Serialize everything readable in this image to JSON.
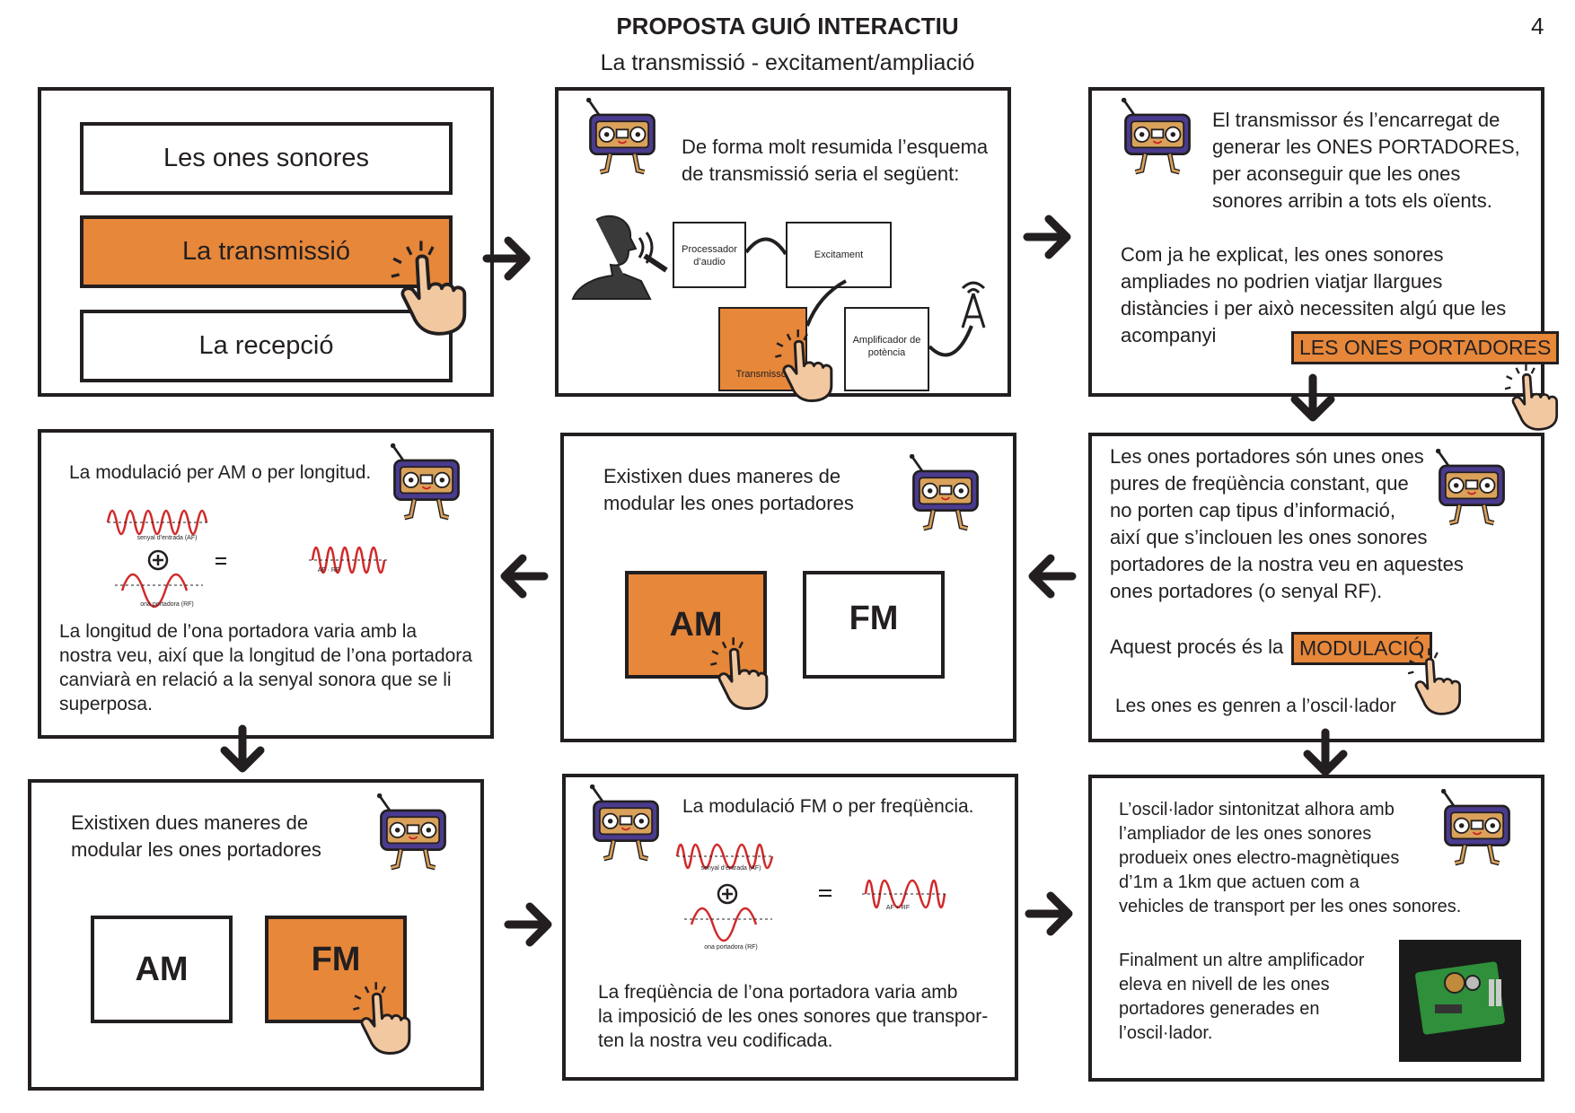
{
  "header": {
    "title": "PROPOSTA GUIÓ INTERACTIU",
    "subtitle": "La transmissió - excitament/ampliació",
    "page_number": "4"
  },
  "panel1": {
    "buttons": [
      "Les ones sonores",
      "La transmissió",
      "La recepció"
    ],
    "selected": 1
  },
  "panel2": {
    "text": "De forma molt resumida l’esquema\nde transmissió seria el següent:",
    "boxes": {
      "processor": "Processador\nd’audio",
      "exciter": "Excitament",
      "transmitter": "Transmissor",
      "amplifier": "Amplificador\nde potència"
    }
  },
  "panel3": {
    "text1": "El transmissor és l’encarregat de\ngenerar les ONES PORTADORES,\nper aconseguir que les ones\nsonores arribin a tots els oïents.",
    "text2": "Com ja he explicat, les ones sonores\nampliades no podrien viatjar llargues\ndistàncies i per això necessiten algú que les\nacompanyi",
    "button": "LES ONES PORTADORES"
  },
  "panel4": {
    "text": "Les ones portadores són unes ones\npures de freqüència constant, que\nno porten cap tipus d’informació,\naixí que s’inclouen les ones sonores\nportadores de la nostra veu en aquestes\nones portadores (o senyal RF).",
    "process_text": "Aquest procés és la",
    "button": "MODULACIÓ",
    "footer": "Les ones es genren a l’oscil·lador"
  },
  "panel5": {
    "text": "Existixen dues maneres de\nmodular les ones portadores",
    "am_label": "AM",
    "fm_label": "FM"
  },
  "panel6": {
    "title": "La modulació per AM o per longitud.",
    "captions": {
      "input": "senyal d’entrada (AF)",
      "carrier": "ona portadora (RF)",
      "output": "AF · RF"
    },
    "text": "La longitud de l’ona portadora varia amb la\nnostra veu, així que la longitud de l’ona portadora\ncanviarà en relació a la senyal sonora que se li\nsuperposa."
  },
  "panel7": {
    "text": "Existixen dues maneres de\nmodular les ones portadores",
    "am_label": "AM",
    "fm_label": "FM"
  },
  "panel8": {
    "title": "La modulació FM o per freqüència.",
    "captions": {
      "input": "senyal d’entrada (AF)",
      "carrier": "ona portadora (RF)",
      "output": "AF + RF"
    },
    "text": "La freqüència de l’ona portadora varia amb\nla imposició de les ones sonores que transpor-\nten la nostra veu codificada."
  },
  "panel9": {
    "text1": "L’oscil·lador sintonitzat alhora amb\nl’ampliador de les ones sonores\nprodueix ones electro-magnètiques\nd’1m a 1km que actuen com a\nvehicles de transport per les ones sonores.",
    "text2": "Finalment un altre amplificador\neleva en nivell de les ones\nportadores generades en\nl’oscil·lador."
  },
  "colors": {
    "accent": "#e6873a",
    "wave": "#d12a2a",
    "ink": "#231f20",
    "robot": "#4b3b8f"
  }
}
